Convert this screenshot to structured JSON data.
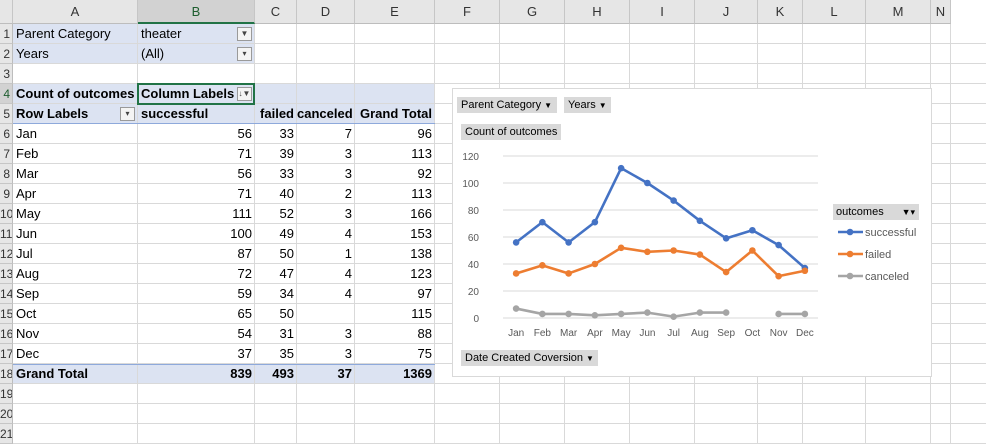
{
  "columns": [
    "A",
    "B",
    "C",
    "D",
    "E",
    "F",
    "G",
    "H",
    "I",
    "J",
    "K",
    "L",
    "M",
    "N"
  ],
  "rows": [
    "1",
    "2",
    "3",
    "4",
    "5",
    "6",
    "7",
    "8",
    "9",
    "10",
    "11",
    "12",
    "13",
    "14",
    "15",
    "16",
    "17",
    "18",
    "19",
    "20",
    "21"
  ],
  "filters": [
    {
      "label": "Parent Category",
      "value": "theater"
    },
    {
      "label": "Years",
      "value": "(All)"
    }
  ],
  "pivot": {
    "count_label": "Count of outcomes",
    "column_labels": "Column Labels",
    "row_labels": "Row Labels",
    "headers": [
      "successful",
      "failed",
      "canceled",
      "Grand Total"
    ],
    "rows": [
      {
        "label": "Jan",
        "values": [
          "56",
          "33",
          "7",
          "96"
        ]
      },
      {
        "label": "Feb",
        "values": [
          "71",
          "39",
          "3",
          "113"
        ]
      },
      {
        "label": "Mar",
        "values": [
          "56",
          "33",
          "3",
          "92"
        ]
      },
      {
        "label": "Apr",
        "values": [
          "71",
          "40",
          "2",
          "113"
        ]
      },
      {
        "label": "May",
        "values": [
          "111",
          "52",
          "3",
          "166"
        ]
      },
      {
        "label": "Jun",
        "values": [
          "100",
          "49",
          "4",
          "153"
        ]
      },
      {
        "label": "Jul",
        "values": [
          "87",
          "50",
          "1",
          "138"
        ]
      },
      {
        "label": "Aug",
        "values": [
          "72",
          "47",
          "4",
          "123"
        ]
      },
      {
        "label": "Sep",
        "values": [
          "59",
          "34",
          "4",
          "97"
        ]
      },
      {
        "label": "Oct",
        "values": [
          "65",
          "50",
          "",
          "115"
        ]
      },
      {
        "label": "Nov",
        "values": [
          "54",
          "31",
          "3",
          "88"
        ]
      },
      {
        "label": "Dec",
        "values": [
          "37",
          "35",
          "3",
          "75"
        ]
      }
    ],
    "total": {
      "label": "Grand Total",
      "values": [
        "839",
        "493",
        "37",
        "1369"
      ]
    }
  },
  "chart_buttons": {
    "parent_category": "Parent Category",
    "years": "Years",
    "count": "Count of outcomes",
    "date": "Date Created Coversion",
    "legend_title": "outcomes"
  },
  "chart_data": {
    "type": "line",
    "categories": [
      "Jan",
      "Feb",
      "Mar",
      "Apr",
      "May",
      "Jun",
      "Jul",
      "Aug",
      "Sep",
      "Oct",
      "Nov",
      "Dec"
    ],
    "series": [
      {
        "name": "successful",
        "color": "#4472c4",
        "values": [
          56,
          71,
          56,
          71,
          111,
          100,
          87,
          72,
          59,
          65,
          54,
          37
        ]
      },
      {
        "name": "failed",
        "color": "#ed7d31",
        "values": [
          33,
          39,
          33,
          40,
          52,
          49,
          50,
          47,
          34,
          50,
          31,
          35
        ]
      },
      {
        "name": "canceled",
        "color": "#a5a5a5",
        "values": [
          7,
          3,
          3,
          2,
          3,
          4,
          1,
          4,
          4,
          null,
          3,
          3
        ]
      }
    ],
    "yticks": [
      "0",
      "20",
      "40",
      "60",
      "80",
      "100",
      "120"
    ],
    "ylim": [
      0,
      120
    ],
    "grid": true,
    "legend": "right"
  }
}
